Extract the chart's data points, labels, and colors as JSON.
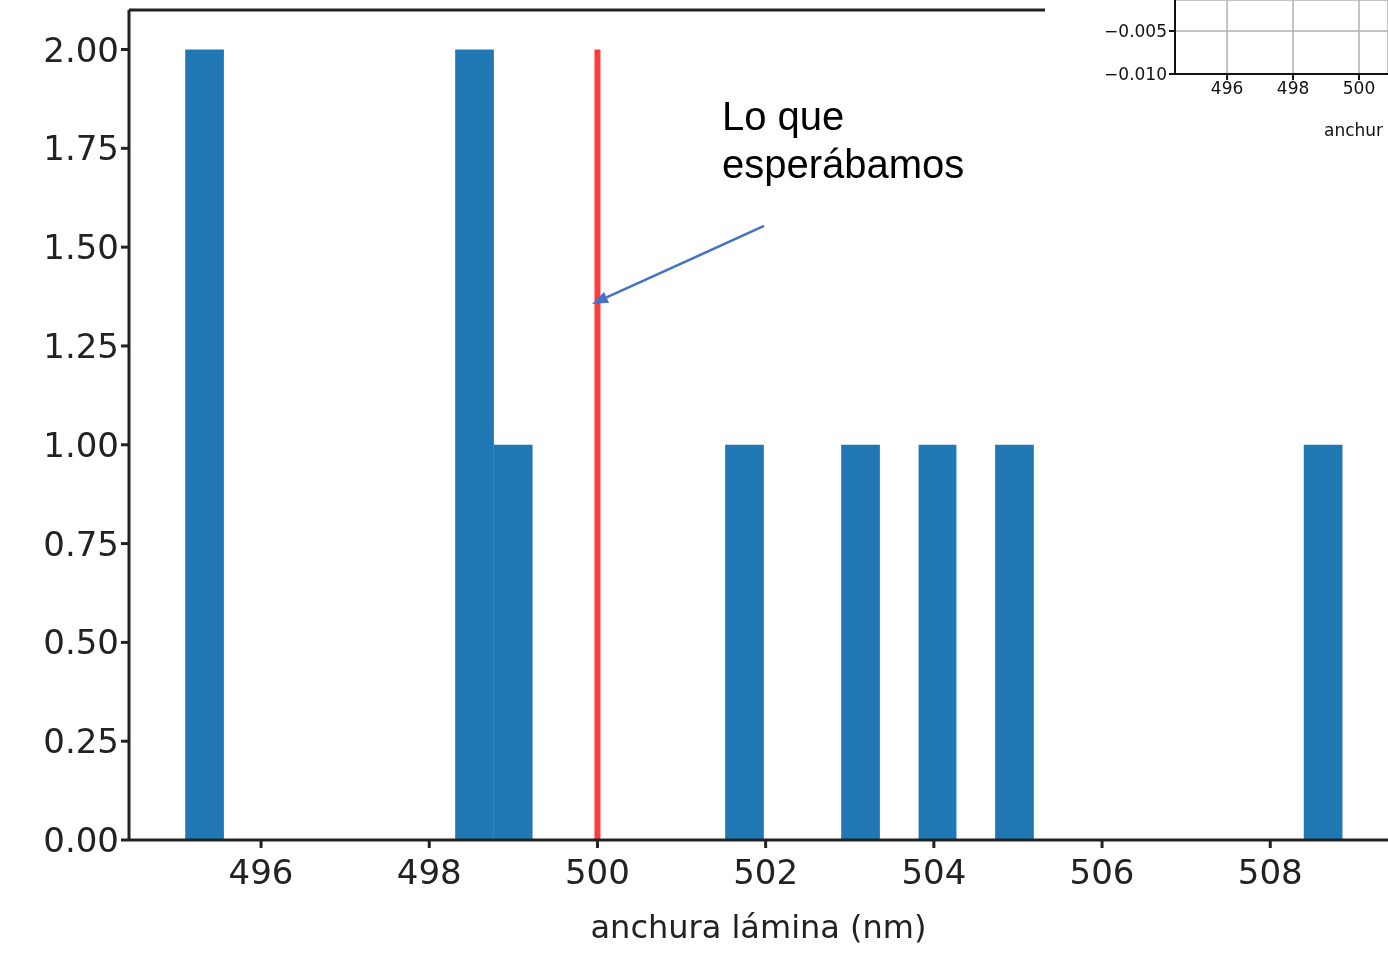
{
  "chart_data": [
    {
      "type": "histogram",
      "xlabel": "anchura lámina (nm)",
      "color": "#1f77b4",
      "bins": [
        495.1,
        495.56,
        498.31,
        498.77,
        499.23,
        501.52,
        501.98,
        502.9,
        503.36,
        503.82,
        504.27,
        504.73,
        505.19,
        508.4,
        508.86
      ],
      "values": [
        2,
        0,
        2,
        1,
        0,
        1,
        0,
        1,
        0,
        1,
        0,
        1,
        0,
        1
      ],
      "xlim": [
        494.43,
        509.4
      ],
      "ylim": [
        0,
        2.1
      ],
      "xticks": [
        496,
        498,
        500,
        502,
        504,
        506,
        508
      ],
      "yticks": [
        {
          "value": 0,
          "label": "0.00"
        },
        {
          "value": 0.25,
          "label": "0.25"
        },
        {
          "value": 0.5,
          "label": "0.50"
        },
        {
          "value": 0.75,
          "label": "0.75"
        },
        {
          "value": 1,
          "label": "1.00"
        },
        {
          "value": 1.25,
          "label": "1.25"
        },
        {
          "value": 1.5,
          "label": "1.50"
        },
        {
          "value": 1.75,
          "label": "1.75"
        },
        {
          "value": 2,
          "label": "2.00"
        }
      ],
      "ref_lines": [
        {
          "axis": "x",
          "value": 500,
          "color": "#ff3b3b"
        }
      ],
      "annotations": [
        "Lo que esperábamos"
      ],
      "grid": false,
      "legend": false
    },
    {
      "type": "line",
      "xlabel": "anchur",
      "xlim": [
        494.42,
        500.88
      ],
      "ylim": [
        -0.01,
        -0.0014
      ],
      "xticks": [
        496,
        498,
        500
      ],
      "yticks": [
        {
          "value": -0.01,
          "label": "−0.010"
        },
        {
          "value": -0.005,
          "label": "−0.005"
        }
      ],
      "grid": true,
      "legend": false
    }
  ]
}
